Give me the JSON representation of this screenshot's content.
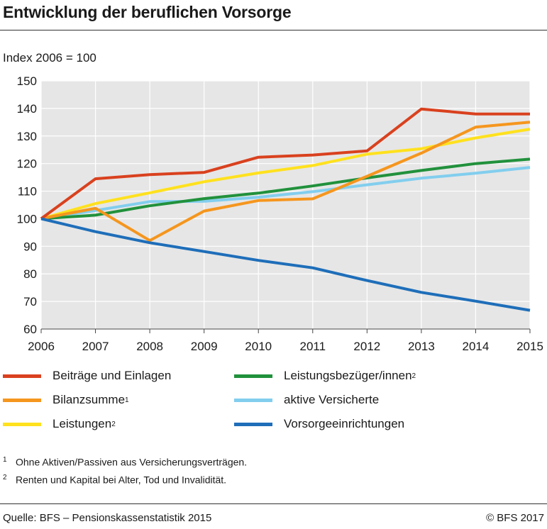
{
  "title": "Entwicklung der beruflichen Vorsorge",
  "subtitle": "Index 2006 = 100",
  "chart_data": {
    "type": "line",
    "x": [
      "2006",
      "2007",
      "2008",
      "2009",
      "2010",
      "2011",
      "2012",
      "2013",
      "2014",
      "2015"
    ],
    "ylim": [
      60,
      150
    ],
    "yticks": [
      "60",
      "70",
      "80",
      "90",
      "100",
      "110",
      "120",
      "130",
      "140",
      "150"
    ],
    "grid": true,
    "series": [
      {
        "name": "Beiträge und Einlagen",
        "sup": "",
        "color": "#d9411e",
        "values": [
          100,
          114.5,
          116,
          116.8,
          122.3,
          123.1,
          124.6,
          139.8,
          138,
          138
        ]
      },
      {
        "name": "Bilanzsumme",
        "sup": "1",
        "color": "#f5961e",
        "values": [
          100,
          103.8,
          92.1,
          102.8,
          106.6,
          107.2,
          115.4,
          123.8,
          133.2,
          135
        ]
      },
      {
        "name": "Leistungen",
        "sup": "2",
        "color": "#ffe11e",
        "values": [
          100,
          105.5,
          109.4,
          113.4,
          116.6,
          119.3,
          123.4,
          125.4,
          129.3,
          132.5
        ]
      },
      {
        "name": "Leistungsbezüger/innen",
        "sup": "2",
        "color": "#21913c",
        "values": [
          100,
          101.3,
          104.7,
          107.3,
          109.3,
          111.9,
          114.8,
          117.5,
          120,
          121.6
        ]
      },
      {
        "name": "aktive Versicherte",
        "sup": "",
        "color": "#82ceee",
        "values": [
          100,
          103,
          106.2,
          106.3,
          107.8,
          109.8,
          112.3,
          114.7,
          116.5,
          118.6
        ]
      },
      {
        "name": "Vorsorgeeinrichtungen",
        "sup": "",
        "color": "#1e6eb9",
        "values": [
          100,
          95.3,
          91.3,
          88.1,
          84.9,
          82.2,
          77.6,
          73.3,
          70.1,
          66.8
        ]
      }
    ]
  },
  "legend": [
    {
      "label": "Beiträge und Einlagen",
      "sup": "",
      "color": "#d9411e"
    },
    {
      "label": "Leistungsbezüger/innen",
      "sup": "2",
      "color": "#21913c"
    },
    {
      "label": "Bilanzsumme",
      "sup": "1",
      "color": "#f5961e"
    },
    {
      "label": "aktive Versicherte",
      "sup": "",
      "color": "#82ceee"
    },
    {
      "label": "Leistungen",
      "sup": "2",
      "color": "#ffe11e"
    },
    {
      "label": "Vorsorgeeinrichtungen",
      "sup": "",
      "color": "#1e6eb9"
    }
  ],
  "footnotes": [
    {
      "num": "1",
      "text": "Ohne Aktiven/Passiven aus Versicherungsverträgen."
    },
    {
      "num": "2",
      "text": "Renten und Kapital bei Alter, Tod und Invalidität."
    }
  ],
  "source": "Quelle: BFS – Pensionskassenstatistik 2015",
  "copyright": "© BFS 2017"
}
